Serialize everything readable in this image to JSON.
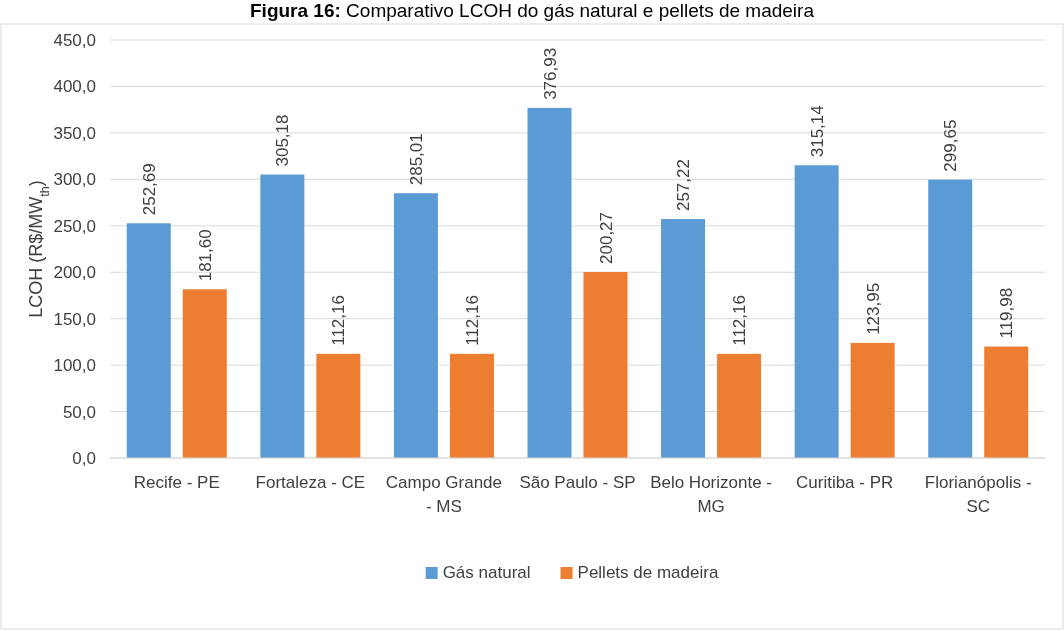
{
  "chart_data": {
    "type": "bar",
    "title": "Figura 16: Comparativo LCOH do gás natural e pellets de madeira",
    "ylabel": "LCOH (R$/MW$_{th}$)",
    "categories": [
      "Recife - PE",
      "Fortaleza - CE",
      "Campo Grande - MS",
      "São Paulo - SP",
      "Belo Horizonte - MG",
      "Curitiba - PR",
      "Florianópolis - SC"
    ],
    "series": [
      {
        "name": "Gás natural",
        "color": "#5b9bd5",
        "values": [
          252.69,
          305.18,
          285.01,
          376.93,
          257.22,
          315.14,
          299.65
        ],
        "value_labels": [
          "252,69",
          "305,18",
          "285,01",
          "376,93",
          "257,22",
          "315,14",
          "299,65"
        ]
      },
      {
        "name": "Pellets de madeira",
        "color": "#ed7d31",
        "values": [
          181.6,
          112.16,
          112.16,
          200.27,
          112.16,
          123.95,
          119.98
        ],
        "value_labels": [
          "181,60",
          "112,16",
          "112,16",
          "200,27",
          "112,16",
          "123,95",
          "119,98"
        ]
      }
    ],
    "ylim": [
      0,
      450
    ],
    "yticks": [
      {
        "value": 0,
        "label": "0,0"
      },
      {
        "value": 50,
        "label": "50,0"
      },
      {
        "value": 100,
        "label": "100,0"
      },
      {
        "value": 150,
        "label": "150,0"
      },
      {
        "value": 200,
        "label": "200,0"
      },
      {
        "value": 250,
        "label": "250,0"
      },
      {
        "value": 300,
        "label": "300,0"
      },
      {
        "value": 350,
        "label": "350,0"
      },
      {
        "value": 400,
        "label": "400,0"
      },
      {
        "value": 450,
        "label": "450,0"
      }
    ],
    "grid": "y",
    "legend": "bottom"
  }
}
